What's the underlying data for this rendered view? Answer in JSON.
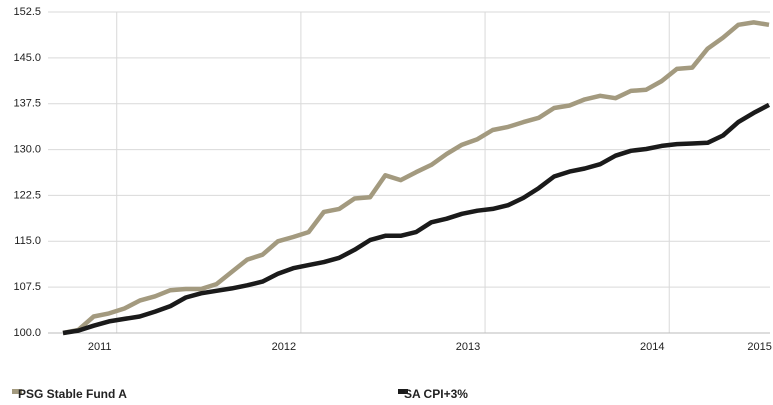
{
  "chart_data": {
    "type": "line",
    "categories": [
      null,
      null,
      "2011",
      null,
      null,
      null,
      null,
      null,
      null,
      null,
      null,
      null,
      null,
      null,
      "2012",
      null,
      null,
      null,
      null,
      null,
      null,
      null,
      null,
      null,
      null,
      null,
      "2013",
      null,
      null,
      null,
      null,
      null,
      null,
      null,
      null,
      null,
      null,
      null,
      "2014",
      null,
      null,
      null,
      null,
      null,
      null,
      "2015",
      null
    ],
    "series": [
      {
        "name": "PSG Stable Fund A",
        "color": "#a39a7f",
        "values": [
          100.0,
          100.5,
          102.7,
          103.2,
          104.0,
          105.3,
          106.0,
          107.0,
          107.2,
          107.2,
          108.0,
          110.0,
          112.0,
          112.8,
          115.0,
          115.7,
          116.5,
          119.8,
          120.3,
          122.0,
          122.2,
          125.8,
          125.0,
          126.3,
          127.5,
          129.3,
          130.8,
          131.7,
          133.2,
          133.7,
          134.5,
          135.2,
          136.8,
          137.2,
          138.2,
          138.8,
          138.4,
          139.6,
          139.8,
          141.2,
          143.2,
          143.4,
          146.5,
          148.3,
          150.4,
          150.8,
          150.4
        ]
      },
      {
        "name": "SA CPI+3%",
        "color": "#1a1a1a",
        "values": [
          100.0,
          100.4,
          101.2,
          101.9,
          102.3,
          102.7,
          103.5,
          104.4,
          105.8,
          106.5,
          106.9,
          107.3,
          107.8,
          108.4,
          109.7,
          110.6,
          111.1,
          111.6,
          112.3,
          113.6,
          115.2,
          115.9,
          115.9,
          116.5,
          118.1,
          118.7,
          119.5,
          120.0,
          120.3,
          120.9,
          122.1,
          123.7,
          125.6,
          126.4,
          126.9,
          127.6,
          129.0,
          129.8,
          130.1,
          130.6,
          130.9,
          131.0,
          131.1,
          132.3,
          134.5,
          136.0,
          137.3
        ]
      }
    ],
    "ylim": [
      100,
      152.5
    ],
    "yticks": [
      {
        "value": 100,
        "label": "100.0"
      },
      {
        "value": 107.5,
        "label": "107.5"
      },
      {
        "value": 115,
        "label": "115.0"
      },
      {
        "value": 122.5,
        "label": "122.5"
      },
      {
        "value": 130,
        "label": "130.0"
      },
      {
        "value": 137.5,
        "label": "137.5"
      },
      {
        "value": 145,
        "label": "145.0"
      },
      {
        "value": 152.5,
        "label": "152.5"
      }
    ],
    "grid": true
  }
}
